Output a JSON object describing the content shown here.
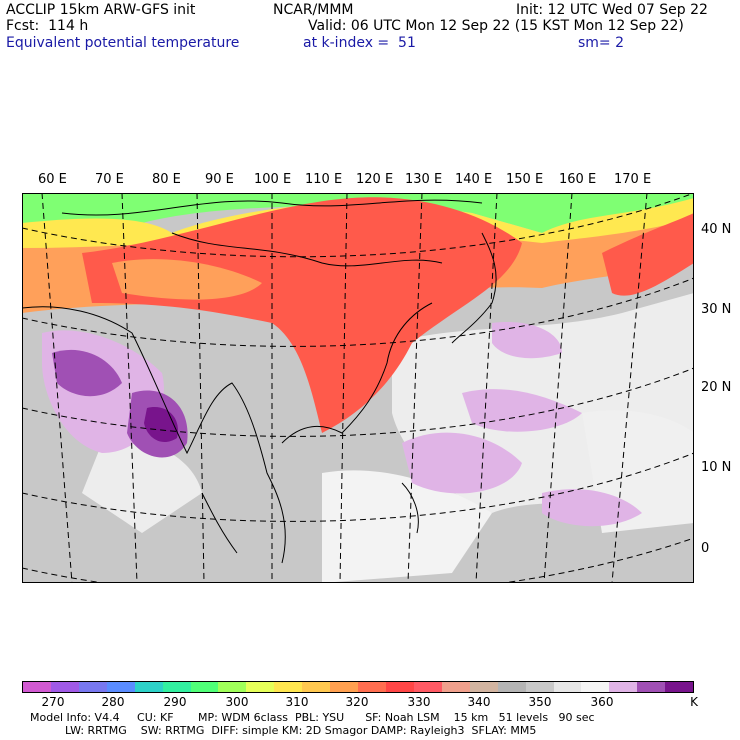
{
  "header": {
    "model_line": "ACCLIP 15km ARW-GFS init",
    "fcst_line": "Fcst:  114 h",
    "field_line": "Equivalent potential temperature",
    "center": "NCAR/MMM",
    "init_line": "Init: 12 UTC Wed 07 Sep 22",
    "valid_line": "Valid: 06 UTC Mon 12 Sep 22 (15 KST Mon 12 Sep 22)",
    "level_line": "at k-index =  51",
    "smooth_line": "sm= 2"
  },
  "map": {
    "lon_labels": [
      "60 E",
      "70 E",
      "80 E",
      "90 E",
      "100 E",
      "110 E",
      "120 E",
      "130 E",
      "140 E",
      "150 E",
      "160 E",
      "170 E"
    ],
    "lat_labels": [
      "40 N",
      "30 N",
      "20 N",
      "10 N",
      "0"
    ],
    "colors": {
      "cool": "#f3f3f3",
      "neutral": "#c8c8c8",
      "warm": "#ff5a4b",
      "orange": "#ffa05a",
      "yellow": "#ffe850",
      "green": "#7fff73",
      "lilac": "#e0b4e6",
      "purple": "#a050b4",
      "deep_purple": "#78148c"
    }
  },
  "colorbar": {
    "colors": [
      "#d25ad2",
      "#a05ae6",
      "#7878f0",
      "#5a8cff",
      "#2dd2c8",
      "#32f0a0",
      "#50ff78",
      "#a0ff5a",
      "#e6ff5a",
      "#ffe650",
      "#ffc850",
      "#ffa050",
      "#ff6e50",
      "#ff4646",
      "#ff5a64",
      "#f0a08c",
      "#d2b4a0",
      "#b4b4b4",
      "#c8c8c8",
      "#e6e6e6",
      "#f5f5f5",
      "#e0b4e6",
      "#a050b4",
      "#78148c"
    ],
    "tick_labels": [
      "270",
      "280",
      "290",
      "300",
      "310",
      "320",
      "330",
      "340",
      "350",
      "360"
    ],
    "unit": "K"
  },
  "footer": {
    "line1": "Model Info: V4.4     CU: KF       MP: WDM 6class  PBL: YSU      SF: Noah LSM    15 km   51 levels   90 sec",
    "line2": "          LW: RRTMG    SW: RRTMG  DIFF: simple KM: 2D Smagor DAMP: Rayleigh3  SFLAY: MM5"
  }
}
